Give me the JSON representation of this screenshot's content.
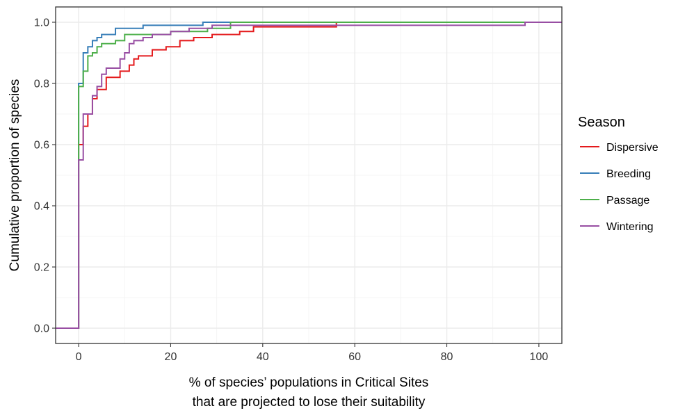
{
  "chart_data": {
    "type": "line",
    "subtype": "step (empirical cumulative distribution)",
    "xlabel": [
      "% of species’ populations in Critical Sites",
      "that are projected to lose their suitability"
    ],
    "ylabel": "Cumulative proportion of species",
    "xlim": [
      -5,
      105
    ],
    "ylim": [
      -0.05,
      1.05
    ],
    "x_ticks": [
      0,
      20,
      40,
      60,
      80,
      100
    ],
    "y_ticks": [
      0.0,
      0.2,
      0.4,
      0.6,
      0.8,
      1.0
    ],
    "x_tick_labels": [
      "0",
      "20",
      "40",
      "60",
      "80",
      "100"
    ],
    "y_tick_labels": [
      "0.0",
      "0.2",
      "0.4",
      "0.6",
      "0.8",
      "1.0"
    ],
    "grid": true,
    "legend": {
      "title": "Season",
      "position": "right"
    },
    "series": [
      {
        "name": "Dispersive",
        "color": "#e41a1c",
        "points": [
          [
            -5,
            0
          ],
          [
            0,
            0
          ],
          [
            0,
            0.6
          ],
          [
            1,
            0.6
          ],
          [
            1,
            0.66
          ],
          [
            2,
            0.66
          ],
          [
            2,
            0.7
          ],
          [
            3,
            0.7
          ],
          [
            3,
            0.75
          ],
          [
            4,
            0.75
          ],
          [
            4,
            0.78
          ],
          [
            6,
            0.78
          ],
          [
            6,
            0.82
          ],
          [
            9,
            0.82
          ],
          [
            9,
            0.84
          ],
          [
            11,
            0.84
          ],
          [
            11,
            0.86
          ],
          [
            12,
            0.86
          ],
          [
            12,
            0.88
          ],
          [
            13,
            0.88
          ],
          [
            13,
            0.89
          ],
          [
            16,
            0.89
          ],
          [
            16,
            0.91
          ],
          [
            19,
            0.91
          ],
          [
            19,
            0.92
          ],
          [
            22,
            0.92
          ],
          [
            22,
            0.94
          ],
          [
            25,
            0.94
          ],
          [
            25,
            0.95
          ],
          [
            29,
            0.95
          ],
          [
            29,
            0.96
          ],
          [
            35,
            0.96
          ],
          [
            35,
            0.97
          ],
          [
            38,
            0.97
          ],
          [
            38,
            0.985
          ],
          [
            56,
            0.985
          ],
          [
            56,
            1.0
          ],
          [
            105,
            1.0
          ]
        ]
      },
      {
        "name": "Breeding",
        "color": "#377eb8",
        "points": [
          [
            -5,
            0
          ],
          [
            0,
            0
          ],
          [
            0,
            0.8
          ],
          [
            1,
            0.8
          ],
          [
            1,
            0.9
          ],
          [
            2,
            0.9
          ],
          [
            2,
            0.92
          ],
          [
            3,
            0.92
          ],
          [
            3,
            0.94
          ],
          [
            4,
            0.94
          ],
          [
            4,
            0.95
          ],
          [
            5,
            0.95
          ],
          [
            5,
            0.96
          ],
          [
            8,
            0.96
          ],
          [
            8,
            0.98
          ],
          [
            14,
            0.98
          ],
          [
            14,
            0.99
          ],
          [
            27,
            0.99
          ],
          [
            27,
            1.0
          ],
          [
            105,
            1.0
          ]
        ]
      },
      {
        "name": "Passage",
        "color": "#4daf4a",
        "points": [
          [
            -5,
            0
          ],
          [
            0,
            0
          ],
          [
            0,
            0.79
          ],
          [
            1,
            0.79
          ],
          [
            1,
            0.84
          ],
          [
            2,
            0.84
          ],
          [
            2,
            0.89
          ],
          [
            3,
            0.89
          ],
          [
            3,
            0.9
          ],
          [
            4,
            0.9
          ],
          [
            4,
            0.92
          ],
          [
            5,
            0.92
          ],
          [
            5,
            0.93
          ],
          [
            8,
            0.93
          ],
          [
            8,
            0.94
          ],
          [
            10,
            0.94
          ],
          [
            10,
            0.96
          ],
          [
            20,
            0.96
          ],
          [
            20,
            0.97
          ],
          [
            28,
            0.97
          ],
          [
            28,
            0.98
          ],
          [
            33,
            0.98
          ],
          [
            33,
            1.0
          ],
          [
            105,
            1.0
          ]
        ]
      },
      {
        "name": "Wintering",
        "color": "#984ea3",
        "points": [
          [
            -5,
            0
          ],
          [
            0,
            0
          ],
          [
            0,
            0.55
          ],
          [
            1,
            0.55
          ],
          [
            1,
            0.7
          ],
          [
            3,
            0.7
          ],
          [
            3,
            0.76
          ],
          [
            4,
            0.76
          ],
          [
            4,
            0.79
          ],
          [
            5,
            0.79
          ],
          [
            5,
            0.83
          ],
          [
            6,
            0.83
          ],
          [
            6,
            0.85
          ],
          [
            9,
            0.85
          ],
          [
            9,
            0.88
          ],
          [
            10,
            0.88
          ],
          [
            10,
            0.9
          ],
          [
            11,
            0.9
          ],
          [
            11,
            0.93
          ],
          [
            12,
            0.93
          ],
          [
            12,
            0.94
          ],
          [
            14,
            0.94
          ],
          [
            14,
            0.95
          ],
          [
            16,
            0.95
          ],
          [
            16,
            0.96
          ],
          [
            20,
            0.96
          ],
          [
            20,
            0.97
          ],
          [
            24,
            0.97
          ],
          [
            24,
            0.98
          ],
          [
            29,
            0.98
          ],
          [
            29,
            0.99
          ],
          [
            97,
            0.99
          ],
          [
            97,
            1.0
          ],
          [
            105,
            1.0
          ]
        ]
      }
    ]
  }
}
